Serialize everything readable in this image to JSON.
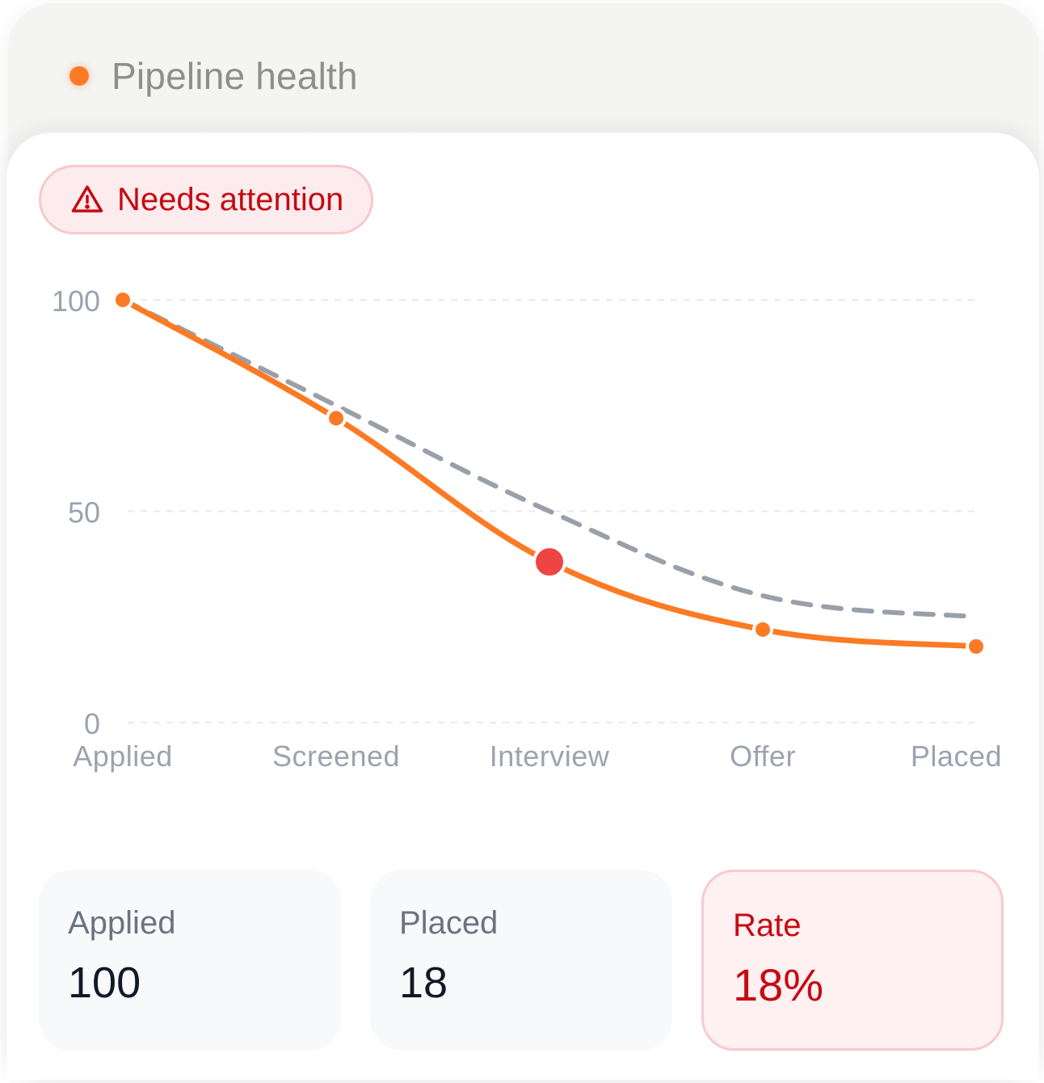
{
  "header": {
    "title": "Pipeline health",
    "dot_color": "#fd7a24"
  },
  "badge": {
    "label": "Needs attention",
    "icon": "warning-triangle-icon",
    "color": "#c60a12"
  },
  "chart_data": {
    "type": "line",
    "categories": [
      "Applied",
      "Screened",
      "Interview",
      "Offer",
      "Placed"
    ],
    "y_ticks": [
      0,
      50,
      100
    ],
    "ylim": [
      0,
      100
    ],
    "grid": true,
    "series": [
      {
        "values": [
          100,
          72,
          38,
          22,
          18
        ],
        "color": "#fd7a24",
        "style": "solid",
        "highlight_index": 2,
        "highlight_color": "#ef4444"
      },
      {
        "values": [
          100,
          75,
          50,
          30,
          25
        ],
        "color": "#9aa0aa",
        "style": "dashed"
      }
    ]
  },
  "stats": [
    {
      "label": "Applied",
      "value": "100"
    },
    {
      "label": "Placed",
      "value": "18"
    },
    {
      "label": "Rate",
      "value": "18%"
    }
  ]
}
